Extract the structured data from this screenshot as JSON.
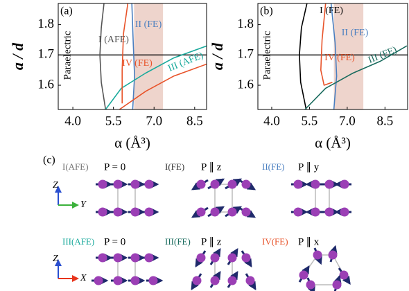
{
  "chart_data": [
    {
      "type": "line",
      "panel_label": "(a)",
      "x_label": "α (Å³)",
      "y_label": "a / d",
      "region_label": "Paraelectric",
      "xlim": [
        3.46,
        8.94
      ],
      "ylim": [
        1.52,
        1.87
      ],
      "xticks": [
        {
          "value": 4,
          "label": "4.0"
        },
        {
          "value": 5.5,
          "label": "5.5"
        },
        {
          "value": 7,
          "label": "7.0"
        },
        {
          "value": 8.5,
          "label": "8.5"
        }
      ],
      "yticks": [
        1.6,
        1.7,
        1.8
      ],
      "hline": 1.7,
      "hline_color": "#000000",
      "shaded_region": [
        6.26,
        7.33
      ],
      "shade_color": "#eac9bf",
      "series": [
        {
          "name": "I (AFE)",
          "color": "#555555",
          "x": [
            5.15,
            5.05,
            5.0,
            5.05,
            5.21
          ],
          "y": [
            1.87,
            1.79,
            1.7,
            1.61,
            1.52
          ]
        },
        {
          "name": "II (FE)",
          "color": "#4a7fc0",
          "x": [
            6.18,
            6.23,
            6.28,
            6.21
          ],
          "y": [
            1.87,
            1.74,
            1.63,
            1.52
          ]
        },
        {
          "name": "III (AFE)",
          "color": "#1aaa9c",
          "x": [
            5.21,
            5.79,
            6.69,
            7.72,
            8.95
          ],
          "y": [
            1.52,
            1.59,
            1.64,
            1.69,
            1.73
          ]
        },
        {
          "name": "IV (FE)",
          "color": "#e8532a",
          "x": [
            6.03,
            5.87,
            5.82,
            5.82,
            null,
            5.72,
            6.69,
            7.72,
            8.95
          ],
          "y": [
            1.87,
            1.77,
            1.65,
            1.54,
            null,
            1.52,
            1.58,
            1.63,
            1.67
          ]
        }
      ]
    },
    {
      "type": "line",
      "panel_label": "(b)",
      "x_label": "α (Å³)",
      "y_label": "a / d",
      "region_label": "Paraelectric",
      "xlim": [
        3.45,
        9.4
      ],
      "ylim": [
        1.52,
        1.87
      ],
      "xticks": [
        {
          "value": 4,
          "label": "4.0"
        },
        {
          "value": 5.5,
          "label": "5.5"
        },
        {
          "value": 7,
          "label": "7.0"
        },
        {
          "value": 8.5,
          "label": "8.5"
        }
      ],
      "yticks": [
        1.6,
        1.7,
        1.8
      ],
      "hline": 1.7,
      "hline_color": "#000000",
      "shaded_region": [
        6.47,
        7.64
      ],
      "shade_color": "#eac9bf",
      "series": [
        {
          "name": "I (FE)",
          "color": "#000000",
          "x": [
            5.4,
            5.18,
            5.1,
            5.15,
            5.37
          ],
          "y": [
            1.87,
            1.79,
            1.7,
            1.61,
            1.52
          ]
        },
        {
          "name": "II (FE)",
          "color": "#4a7fc0",
          "x": [
            6.36,
            6.52,
            6.58,
            6.47
          ],
          "y": [
            1.87,
            1.74,
            1.63,
            1.52
          ]
        },
        {
          "name": "III (FE)",
          "color": "#1a6b5e",
          "x": [
            5.32,
            6.14,
            7.23,
            8.33,
            9.37
          ],
          "y": [
            1.52,
            1.59,
            1.64,
            1.68,
            1.73
          ]
        },
        {
          "name": "IV (FE)",
          "color": "#e8532a",
          "x": [
            6.14,
            6.0,
            5.95,
            6.08,
            6.41
          ],
          "y": [
            1.87,
            1.75,
            1.65,
            1.6,
            1.61
          ]
        }
      ]
    }
  ],
  "diagram": {
    "panel_label": "(c)",
    "axes": [
      {
        "up": "Z",
        "right": "Y"
      },
      {
        "up": "Z",
        "right": "X"
      }
    ],
    "structures": [
      {
        "phase": "I(AFE)",
        "phase_color": "#777777",
        "polarization": "P = 0"
      },
      {
        "phase": "I(FE)",
        "phase_color": "#333333",
        "polarization": "P ∥ z"
      },
      {
        "phase": "II(FE)",
        "phase_color": "#4a7fc0",
        "polarization": "P ∥ y"
      },
      {
        "phase": "III(AFE)",
        "phase_color": "#1aaa9c",
        "polarization": "P = 0"
      },
      {
        "phase": "III(FE)",
        "phase_color": "#1a6b5e",
        "polarization": "P ∥ z"
      },
      {
        "phase": "IV(FE)",
        "phase_color": "#e8532a",
        "polarization": "P ∥ x"
      }
    ]
  }
}
